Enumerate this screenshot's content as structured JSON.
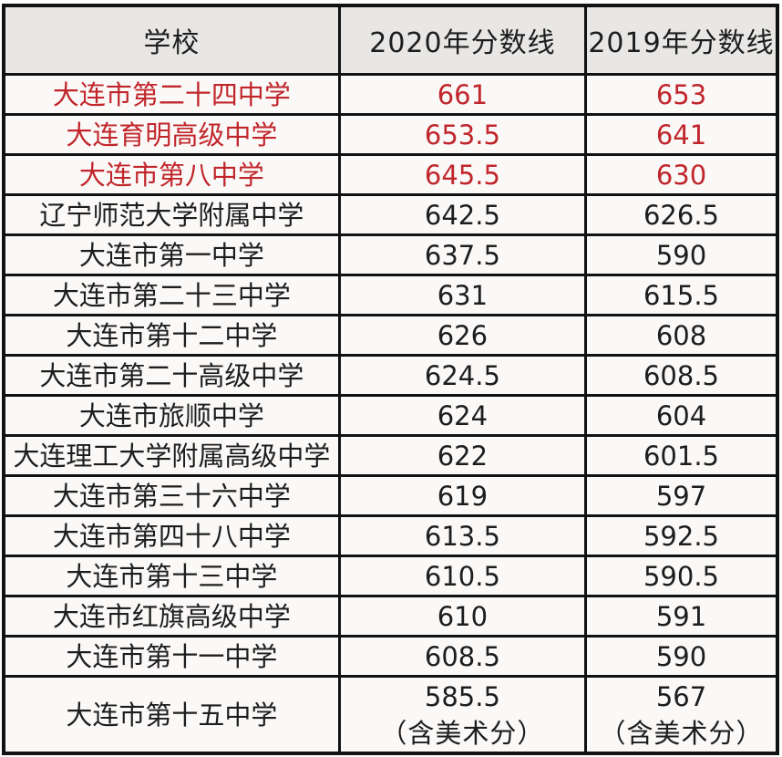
{
  "table": {
    "columns": [
      {
        "key": "school",
        "label": "学校"
      },
      {
        "key": "score_2020",
        "label": "2020年分数线"
      },
      {
        "key": "score_2019",
        "label": "2019年分数线"
      }
    ],
    "rows": [
      {
        "name": "大连市第二十四中学",
        "score_2020": "661",
        "score_2019": "653",
        "highlight": true
      },
      {
        "name": "大连育明高级中学",
        "score_2020": "653.5",
        "score_2019": "641",
        "highlight": true
      },
      {
        "name": "大连市第八中学",
        "score_2020": "645.5",
        "score_2019": "630",
        "highlight": true
      },
      {
        "name": "辽宁师范大学附属中学",
        "score_2020": "642.5",
        "score_2019": "626.5",
        "highlight": false
      },
      {
        "name": "大连市第一中学",
        "score_2020": "637.5",
        "score_2019": "590",
        "highlight": false
      },
      {
        "name": "大连市第二十三中学",
        "score_2020": "631",
        "score_2019": "615.5",
        "highlight": false
      },
      {
        "name": "大连市第十二中学",
        "score_2020": "626",
        "score_2019": "608",
        "highlight": false
      },
      {
        "name": "大连市第二十高级中学",
        "score_2020": "624.5",
        "score_2019": "608.5",
        "highlight": false
      },
      {
        "name": "大连市旅顺中学",
        "score_2020": "624",
        "score_2019": "604",
        "highlight": false
      },
      {
        "name": "大连理工大学附属高级中学",
        "score_2020": "622",
        "score_2019": "601.5",
        "highlight": false
      },
      {
        "name": "大连市第三十六中学",
        "score_2020": "619",
        "score_2019": "597",
        "highlight": false
      },
      {
        "name": "大连市第四十八中学",
        "score_2020": "613.5",
        "score_2019": "592.5",
        "highlight": false
      },
      {
        "name": "大连市第十三中学",
        "score_2020": "610.5",
        "score_2019": "590.5",
        "highlight": false
      },
      {
        "name": "大连市红旗高级中学",
        "score_2020": "610",
        "score_2019": "591",
        "highlight": false
      },
      {
        "name": "大连市第十一中学",
        "score_2020": "608.5",
        "score_2019": "590",
        "highlight": false
      },
      {
        "name": "大连市第十五中学",
        "score_2020": "585.5",
        "score_2019": "567",
        "note_2020": "（含美术分）",
        "note_2019": "（含美术分）",
        "highlight": false
      }
    ]
  },
  "colors": {
    "highlight_text": "#c0262b",
    "body_text": "#1d1d1d",
    "header_background": "#e9e7e5",
    "row_background": "#fbf9f8",
    "border": "#121212"
  }
}
